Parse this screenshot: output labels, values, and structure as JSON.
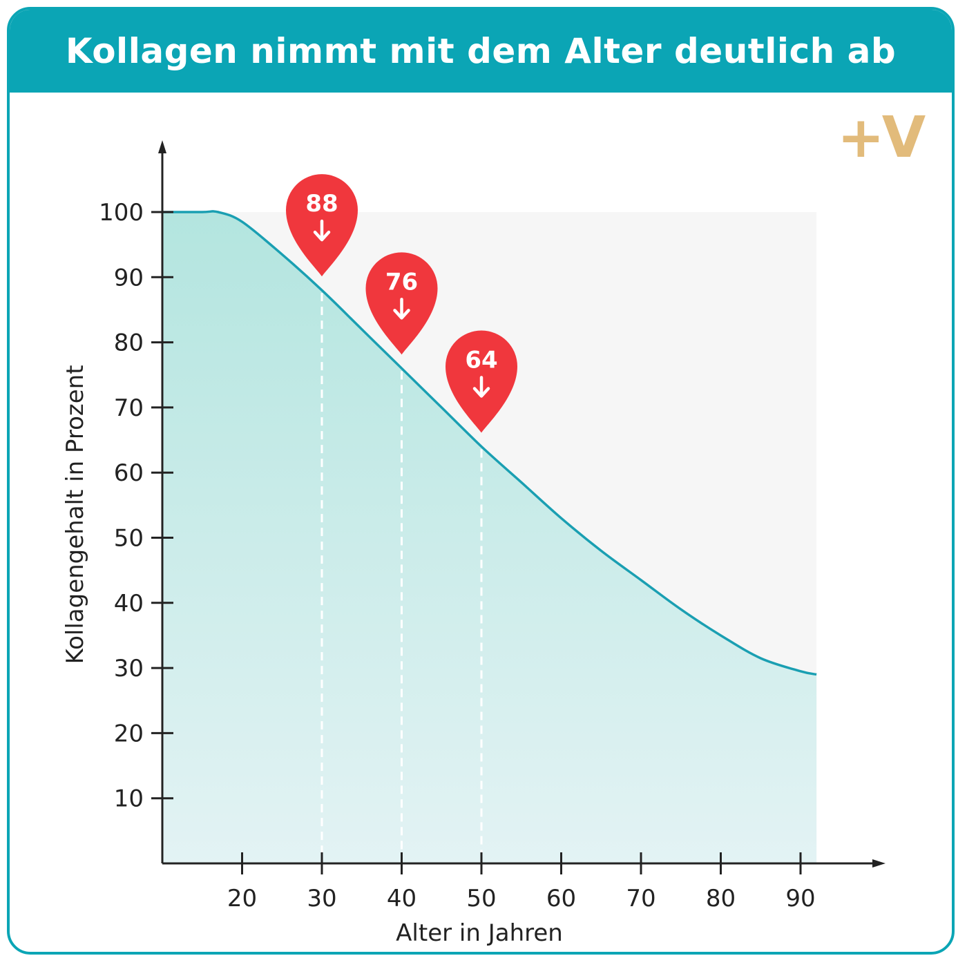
{
  "header": {
    "title": "Kollagen nimmt mit dem Alter deutlich ab"
  },
  "logo": {
    "text": "+V",
    "color": "#e2bb7b"
  },
  "colors": {
    "accent": "#0ba5b5",
    "curve": "#1a9fb2",
    "fill_top": "#b3e5df",
    "fill_bottom": "#e3f3f4",
    "marker": "#f0373d",
    "plot_bg": "#f6f6f6"
  },
  "chart_data": {
    "type": "area",
    "xlabel": "Alter in Jahren",
    "ylabel": "Kollagengehalt in Prozent",
    "xticks": [
      20,
      30,
      40,
      50,
      60,
      70,
      80,
      90
    ],
    "yticks": [
      10,
      20,
      30,
      40,
      50,
      60,
      70,
      80,
      90,
      100
    ],
    "xlim": [
      10,
      92
    ],
    "ylim": [
      0,
      100
    ],
    "x": [
      10,
      15,
      17,
      20,
      25,
      30,
      35,
      40,
      45,
      50,
      55,
      60,
      65,
      70,
      75,
      80,
      85,
      90,
      92
    ],
    "values": [
      100,
      100,
      100,
      98.5,
      93.5,
      88,
      82,
      76,
      70,
      64,
      58.5,
      53,
      48,
      43.5,
      39,
      35,
      31.5,
      29.5,
      29
    ],
    "markers": [
      {
        "x": 30,
        "value": 88,
        "label": "88",
        "icon": "arrow-down-icon"
      },
      {
        "x": 40,
        "value": 76,
        "label": "76",
        "icon": "arrow-down-icon"
      },
      {
        "x": 50,
        "value": 64,
        "label": "64",
        "icon": "arrow-down-icon"
      }
    ]
  }
}
